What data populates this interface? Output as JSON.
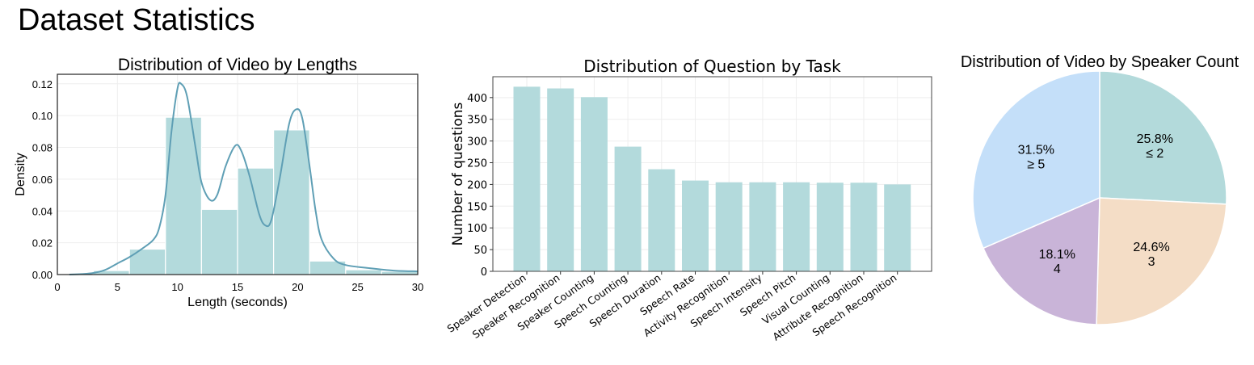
{
  "page_title": "Dataset Statistics",
  "colors": {
    "bar": "#b3dadc",
    "kde": "#5f9fb5",
    "pie": [
      "#b3dadb",
      "#f4ddc6",
      "#c9b4d8",
      "#c4dff9"
    ]
  },
  "chart_data": [
    {
      "type": "histogram",
      "title": "Distribution of Video by Lengths",
      "xlabel": "Length (seconds)",
      "ylabel": "Density",
      "xlim": [
        0,
        30
      ],
      "ylim": [
        0,
        0.126
      ],
      "xticks": [
        "0",
        "5",
        "10",
        "15",
        "20",
        "25",
        "30"
      ],
      "yticks": [
        "0.00",
        "0.02",
        "0.04",
        "0.06",
        "0.08",
        "0.10",
        "0.12"
      ],
      "grid": true,
      "bins": [
        {
          "x0": 3,
          "x1": 6,
          "density": 0.0025
        },
        {
          "x0": 6,
          "x1": 9,
          "density": 0.016
        },
        {
          "x0": 9,
          "x1": 12,
          "density": 0.099
        },
        {
          "x0": 12,
          "x1": 15,
          "density": 0.041
        },
        {
          "x0": 15,
          "x1": 18,
          "density": 0.067
        },
        {
          "x0": 18,
          "x1": 21,
          "density": 0.091
        },
        {
          "x0": 21,
          "x1": 24,
          "density": 0.0085
        },
        {
          "x0": 24,
          "x1": 27,
          "density": 0.003
        },
        {
          "x0": 27,
          "x1": 30,
          "density": 0.002
        }
      ],
      "kde": [
        [
          1,
          0
        ],
        [
          2,
          0.0003
        ],
        [
          3,
          0.001
        ],
        [
          4,
          0.003
        ],
        [
          5,
          0.007
        ],
        [
          6,
          0.011
        ],
        [
          7,
          0.016
        ],
        [
          8,
          0.022
        ],
        [
          8.5,
          0.03
        ],
        [
          9,
          0.05
        ],
        [
          9.5,
          0.09
        ],
        [
          10,
          0.117
        ],
        [
          10.3,
          0.12
        ],
        [
          10.8,
          0.112
        ],
        [
          11.5,
          0.08
        ],
        [
          12,
          0.058
        ],
        [
          12.7,
          0.047
        ],
        [
          13.3,
          0.05
        ],
        [
          14,
          0.068
        ],
        [
          14.8,
          0.081
        ],
        [
          15.3,
          0.078
        ],
        [
          16,
          0.062
        ],
        [
          16.8,
          0.038
        ],
        [
          17.3,
          0.031
        ],
        [
          17.8,
          0.034
        ],
        [
          18.5,
          0.06
        ],
        [
          19.3,
          0.095
        ],
        [
          19.9,
          0.104
        ],
        [
          20.4,
          0.098
        ],
        [
          21,
          0.068
        ],
        [
          21.5,
          0.04
        ],
        [
          22,
          0.022
        ],
        [
          23,
          0.01
        ],
        [
          24,
          0.006
        ],
        [
          26,
          0.004
        ],
        [
          28,
          0.0025
        ],
        [
          30,
          0.002
        ]
      ]
    },
    {
      "type": "bar",
      "title": "Distribution of Question by Task",
      "xlabel": "",
      "ylabel": "Number of questions",
      "ylim": [
        0,
        448
      ],
      "yticks": [
        "0",
        "50",
        "100",
        "150",
        "200",
        "250",
        "300",
        "350",
        "400"
      ],
      "grid": true,
      "categories": [
        "Speaker Detection",
        "Speaker Recognition",
        "Speaker Counting",
        "Speech Counting",
        "Speech Duration",
        "Speech Rate",
        "Activity Recognition",
        "Speech Intensity",
        "Speech Pitch",
        "Visual Counting",
        "Attribute Recognition",
        "Speech Recognition"
      ],
      "values": [
        425,
        421,
        401,
        287,
        235,
        209,
        205,
        205,
        205,
        204,
        204,
        200
      ]
    },
    {
      "type": "pie",
      "title": "Distribution of Video by Speaker Count",
      "start_angle": 90,
      "direction": "clockwise",
      "slices": [
        {
          "label": "≤ 2",
          "pct": "25.8%",
          "value": 25.8
        },
        {
          "label": "3",
          "pct": "24.6%",
          "value": 24.6
        },
        {
          "label": "4",
          "pct": "18.1%",
          "value": 18.1
        },
        {
          "label": "≥ 5",
          "pct": "31.5%",
          "value": 31.5
        }
      ]
    }
  ]
}
